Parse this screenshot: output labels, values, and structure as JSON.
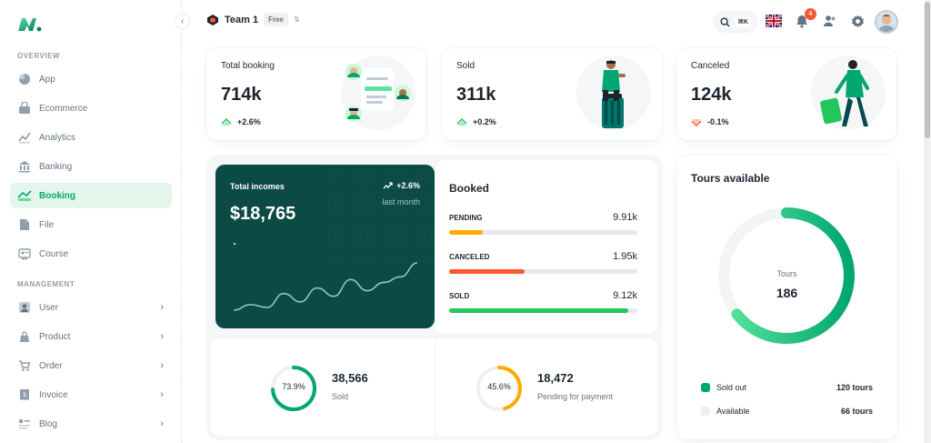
{
  "sidebar": {
    "overview_label": "OVERVIEW",
    "management_label": "MANAGEMENT",
    "overview_items": [
      {
        "label": "App",
        "icon": "app-icon"
      },
      {
        "label": "Ecommerce",
        "icon": "ecommerce-icon"
      },
      {
        "label": "Analytics",
        "icon": "analytics-icon"
      },
      {
        "label": "Banking",
        "icon": "banking-icon"
      },
      {
        "label": "Booking",
        "icon": "booking-icon",
        "active": true
      },
      {
        "label": "File",
        "icon": "file-icon"
      },
      {
        "label": "Course",
        "icon": "course-icon"
      }
    ],
    "management_items": [
      {
        "label": "User",
        "icon": "user-icon"
      },
      {
        "label": "Product",
        "icon": "product-icon"
      },
      {
        "label": "Order",
        "icon": "order-icon"
      },
      {
        "label": "Invoice",
        "icon": "invoice-icon"
      },
      {
        "label": "Blog",
        "icon": "blog-icon"
      }
    ]
  },
  "header": {
    "team_name": "Team 1",
    "plan_badge": "Free",
    "search_shortcut": "⌘K",
    "notification_count": "4"
  },
  "stats": [
    {
      "title": "Total booking",
      "value": "714k",
      "trend": "+2.6%",
      "direction": "up"
    },
    {
      "title": "Sold",
      "value": "311k",
      "trend": "+0.2%",
      "direction": "up"
    },
    {
      "title": "Canceled",
      "value": "124k",
      "trend": "-0.1%",
      "direction": "down"
    }
  ],
  "income": {
    "title": "Total incomes",
    "amount": "$18,765",
    "trend": "+2.6%",
    "period": "last month",
    "sparkline": [
      6,
      8,
      7,
      12,
      9,
      14,
      11,
      17,
      13,
      16,
      18,
      23
    ]
  },
  "booked": {
    "title": "Booked",
    "rows": [
      {
        "label": "PENDING",
        "value": "9.91k",
        "fill": 0.18,
        "color": "#ffab00"
      },
      {
        "label": "CANCELED",
        "value": "1.95k",
        "fill": 0.4,
        "color": "#ff5630"
      },
      {
        "label": "SOLD",
        "value": "9.12k",
        "fill": 0.95,
        "color": "#22c55e"
      }
    ]
  },
  "rings": [
    {
      "percent_label": "73.9%",
      "percent": 73.9,
      "value": "38,566",
      "caption": "Sold",
      "color": "#00a76f"
    },
    {
      "percent_label": "45.6%",
      "percent": 45.6,
      "value": "18,472",
      "caption": "Pending for payment",
      "color": "#ffab00"
    }
  ],
  "tours": {
    "title": "Tours available",
    "center_label": "Tours",
    "center_value": "186",
    "sold_out_fraction": 0.645,
    "legend": [
      {
        "label": "Sold out",
        "value": "120 tours",
        "color": "#00a76f"
      },
      {
        "label": "Available",
        "value": "66 tours",
        "color": "#eceff1"
      }
    ]
  },
  "colors": {
    "primary": "#00a76f",
    "income_bg": "#0b4a45",
    "warning": "#ffab00",
    "error": "#ff5630"
  }
}
